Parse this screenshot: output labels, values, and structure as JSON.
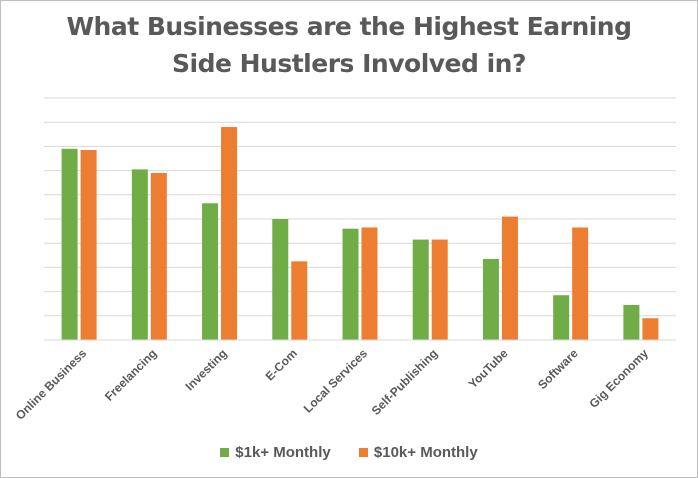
{
  "colors": {
    "series1": "#70ad47",
    "series2": "#ed7d31",
    "grid": "#d9d9d9",
    "text": "#595959"
  },
  "chart_data": {
    "type": "bar",
    "title_lines": [
      "What Businesses are the Highest Earning",
      "Side Hustlers Involved in?"
    ],
    "categories": [
      "Online Business",
      "Freelancing",
      "Investing",
      "E-Com",
      "Local Services",
      "Self-Publishing",
      "YouTube",
      "Software",
      "Gig Economy"
    ],
    "series": [
      {
        "name": "$1k+ Monthly",
        "values": [
          79,
          70.5,
          56.5,
          50,
          46,
          41.5,
          33.5,
          18.5,
          14.5
        ]
      },
      {
        "name": "$10k+ Monthly",
        "values": [
          78.5,
          69,
          88,
          32.5,
          46.5,
          41.5,
          51,
          46.5,
          9
        ]
      }
    ],
    "ylim": [
      0,
      100
    ],
    "gridlines": 10,
    "grid": true,
    "legend_position": "bottom",
    "xlabel": "",
    "ylabel": ""
  }
}
